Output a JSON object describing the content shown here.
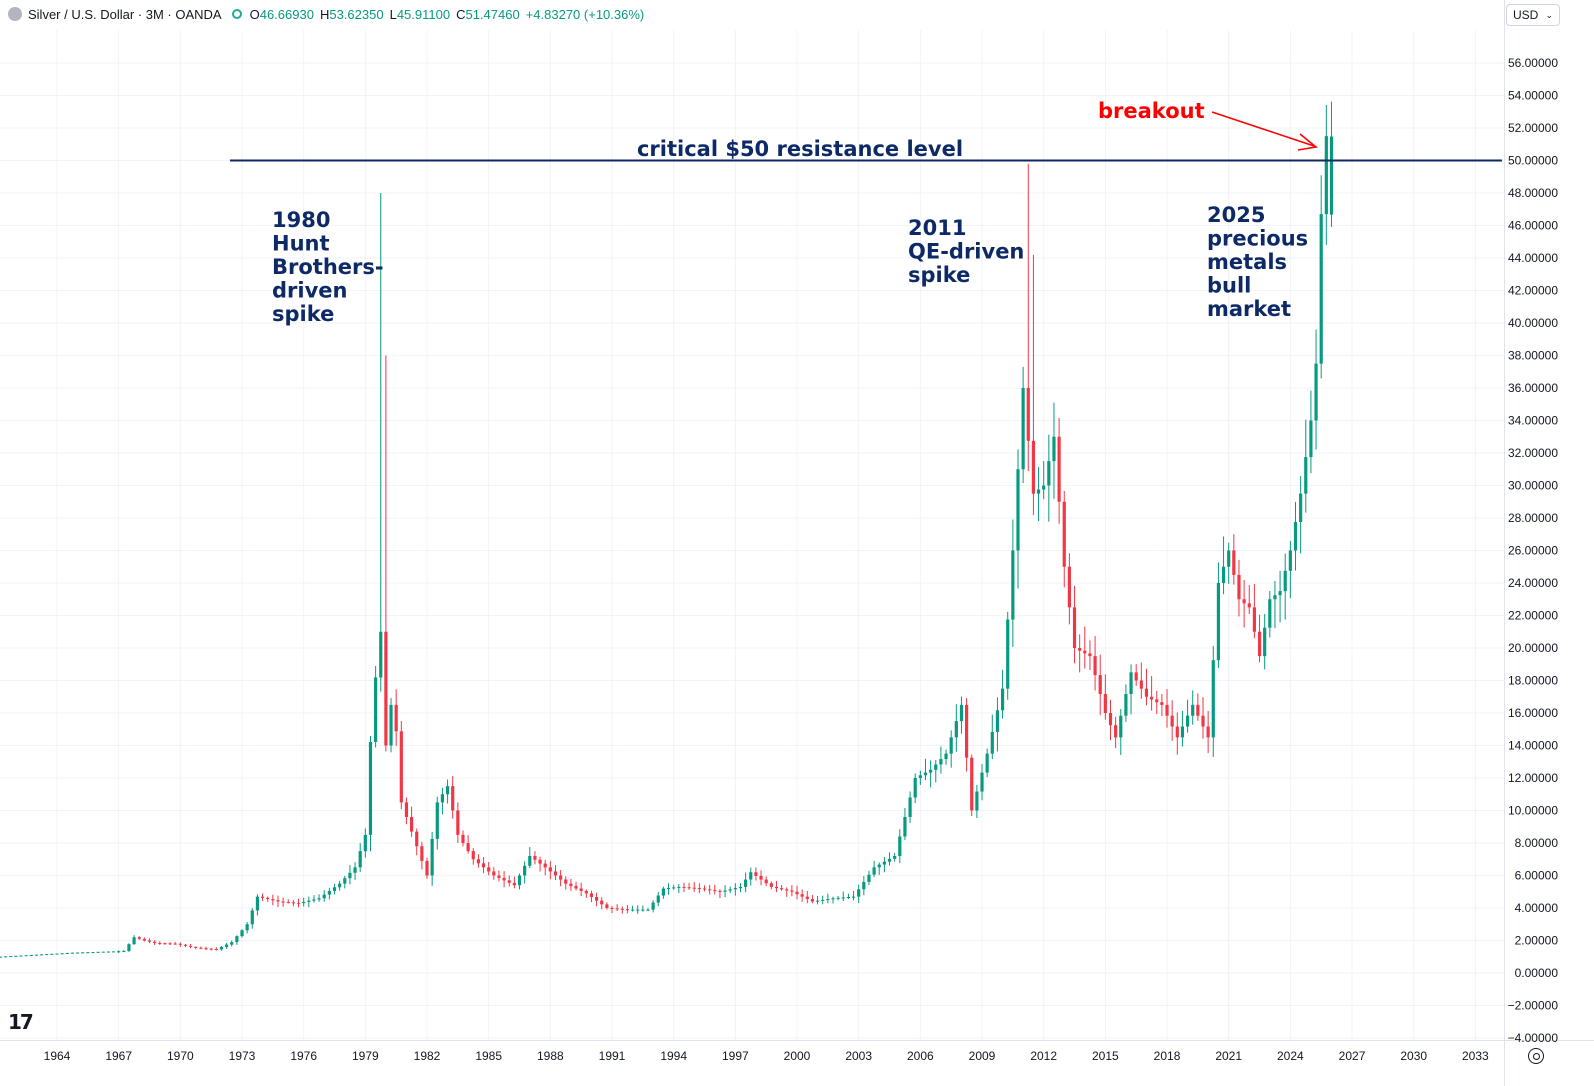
{
  "header": {
    "title": "Silver / U.S. Dollar · 3M · OANDA",
    "open_label": "O",
    "open": "46.66930",
    "high_label": "H",
    "high": "53.62350",
    "low_label": "L",
    "low": "45.91100",
    "close_label": "C",
    "close": "51.47460",
    "change": "+4.83270 (+10.36%)"
  },
  "currency": "USD",
  "colors": {
    "up": "#089981",
    "down": "#f23645",
    "annotation": "#0d2a66",
    "breakout": "#ff0000",
    "grid": "#f0f3fa"
  },
  "chart_data": {
    "type": "candlestick",
    "title": "Silver / U.S. Dollar · 3M · OANDA",
    "xlabel": "",
    "ylabel": "",
    "ylim": [
      -4,
      58
    ],
    "xlim": [
      1960.0,
      2035.0
    ],
    "grid": true,
    "y_ticks": [
      "56.00000",
      "54.00000",
      "52.00000",
      "50.00000",
      "48.00000",
      "46.00000",
      "44.00000",
      "42.00000",
      "40.00000",
      "38.00000",
      "36.00000",
      "34.00000",
      "32.00000",
      "30.00000",
      "28.00000",
      "26.00000",
      "24.00000",
      "22.00000",
      "20.00000",
      "18.00000",
      "16.00000",
      "14.00000",
      "12.00000",
      "10.00000",
      "8.00000",
      "6.00000",
      "4.00000",
      "2.00000",
      "0.00000",
      "−2.00000",
      "−4.00000"
    ],
    "x_ticks": [
      "1964",
      "1967",
      "1970",
      "1973",
      "1976",
      "1979",
      "1982",
      "1985",
      "1988",
      "1991",
      "1994",
      "1997",
      "2000",
      "2003",
      "2006",
      "2009",
      "2012",
      "2015",
      "2018",
      "2021",
      "2024",
      "2027",
      "2030",
      "2033"
    ],
    "resistance_level": 50,
    "annotations": [
      {
        "id": "resistance",
        "lines": [
          "critical $50 resistance level"
        ]
      },
      {
        "id": "breakout",
        "lines": [
          "breakout"
        ]
      },
      {
        "id": "hunt",
        "lines": [
          "1980",
          "Hunt",
          "Brothers-",
          "driven",
          "spike"
        ]
      },
      {
        "id": "qe",
        "lines": [
          "2011",
          "QE-driven",
          "spike"
        ]
      },
      {
        "id": "bull",
        "lines": [
          "2025",
          "precious",
          "metals",
          "bull",
          "market"
        ]
      }
    ],
    "anchors": [
      [
        1960.0,
        0.9
      ],
      [
        1965.0,
        1.25
      ],
      [
        1967.5,
        1.35
      ],
      [
        1968.0,
        2.2
      ],
      [
        1968.5,
        2.0
      ],
      [
        1969.0,
        1.85
      ],
      [
        1970.0,
        1.8
      ],
      [
        1971.0,
        1.55
      ],
      [
        1972.0,
        1.45
      ],
      [
        1972.75,
        1.9
      ],
      [
        1973.5,
        3.0
      ],
      [
        1974.0,
        4.7
      ],
      [
        1975.0,
        4.4
      ],
      [
        1976.0,
        4.3
      ],
      [
        1977.0,
        4.6
      ],
      [
        1978.0,
        5.5
      ],
      [
        1978.75,
        6.5
      ],
      [
        1979.25,
        8.5
      ],
      [
        1979.6,
        16.5
      ],
      [
        1980.0,
        21.0
      ],
      [
        1980.25,
        14.0
      ],
      [
        1980.6,
        17.5
      ],
      [
        1981.0,
        10.5
      ],
      [
        1982.25,
        6.0
      ],
      [
        1982.75,
        10.5
      ],
      [
        1983.25,
        11.5
      ],
      [
        1983.75,
        8.5
      ],
      [
        1984.5,
        7.0
      ],
      [
        1985.5,
        6.0
      ],
      [
        1986.5,
        5.4
      ],
      [
        1987.25,
        7.2
      ],
      [
        1988.0,
        6.5
      ],
      [
        1989.0,
        5.5
      ],
      [
        1990.0,
        4.9
      ],
      [
        1991.0,
        4.0
      ],
      [
        1992.0,
        3.9
      ],
      [
        1993.0,
        3.9
      ],
      [
        1993.75,
        5.2
      ],
      [
        1994.5,
        5.3
      ],
      [
        1995.5,
        5.2
      ],
      [
        1996.5,
        5.0
      ],
      [
        1997.5,
        5.3
      ],
      [
        1998.0,
        6.2
      ],
      [
        1999.0,
        5.3
      ],
      [
        2000.0,
        5.0
      ],
      [
        2001.0,
        4.4
      ],
      [
        2002.0,
        4.6
      ],
      [
        2003.0,
        4.7
      ],
      [
        2004.0,
        6.5
      ],
      [
        2005.0,
        7.2
      ],
      [
        2006.0,
        12.0
      ],
      [
        2006.75,
        12.5
      ],
      [
        2007.5,
        13.5
      ],
      [
        2008.25,
        16.5
      ],
      [
        2008.75,
        10.0
      ],
      [
        2009.5,
        13.5
      ],
      [
        2010.25,
        17.5
      ],
      [
        2010.75,
        26.0
      ],
      [
        2011.25,
        36.0
      ],
      [
        2011.75,
        29.5
      ],
      [
        2012.25,
        30.0
      ],
      [
        2012.75,
        33.0
      ],
      [
        2013.25,
        25.0
      ],
      [
        2013.75,
        20.0
      ],
      [
        2014.5,
        19.5
      ],
      [
        2015.25,
        16.0
      ],
      [
        2015.75,
        14.5
      ],
      [
        2016.5,
        18.5
      ],
      [
        2017.25,
        17.0
      ],
      [
        2018.0,
        16.5
      ],
      [
        2018.75,
        14.5
      ],
      [
        2019.5,
        16.5
      ],
      [
        2020.25,
        14.5
      ],
      [
        2020.75,
        24.0
      ],
      [
        2021.25,
        26.0
      ],
      [
        2021.75,
        23.0
      ],
      [
        2022.25,
        22.5
      ],
      [
        2022.75,
        19.5
      ],
      [
        2023.25,
        23.0
      ],
      [
        2023.75,
        23.5
      ],
      [
        2024.25,
        26.0
      ],
      [
        2024.75,
        29.5
      ],
      [
        2025.25,
        34.0
      ],
      [
        2025.5,
        37.5
      ],
      [
        2025.75,
        46.7
      ],
      [
        2026.0,
        51.5
      ]
    ],
    "last_candle": {
      "open": 46.6693,
      "high": 53.6235,
      "low": 45.911,
      "close": 51.4746
    }
  }
}
